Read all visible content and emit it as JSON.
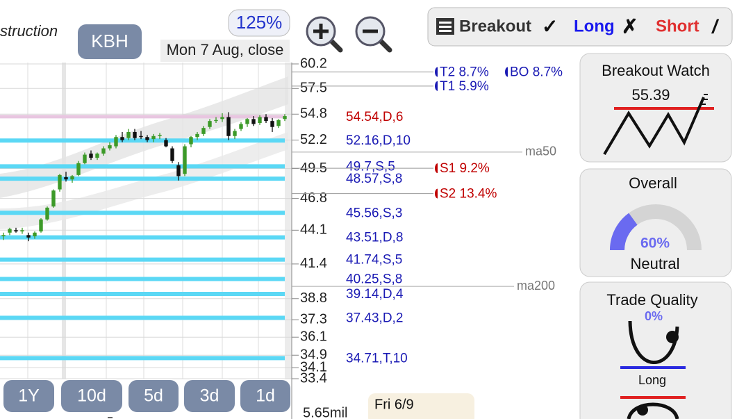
{
  "header": {
    "sector": "struction",
    "symbol": "KBH",
    "zoom": "125%",
    "date": "Mon 7 Aug, close"
  },
  "signals": {
    "breakout": "Breakout",
    "breakout_mark": "✓",
    "long": "Long",
    "long_mark": "✗",
    "short": "Short",
    "short_mark": "/"
  },
  "chart_data": {
    "type": "candlestick",
    "log_scale": true,
    "grid": true,
    "ylim": [
      33.4,
      60.2
    ],
    "yticks": [
      60.2,
      57.5,
      54.8,
      52.2,
      49.5,
      46.8,
      44.1,
      41.4,
      38.8,
      37.3,
      36.1,
      34.9,
      34.1,
      33.4
    ],
    "up_color": "#3c9a28",
    "down_color": "#111111",
    "level_color": "#5bd8f5",
    "candles": [
      [
        43.6,
        43.9,
        43.3,
        43.7
      ],
      [
        43.9,
        44.3,
        43.7,
        44.2
      ],
      [
        44.1,
        44.3,
        43.9,
        44.0
      ],
      [
        44.0,
        44.3,
        43.8,
        44.1
      ],
      [
        43.7,
        43.9,
        43.2,
        43.5
      ],
      [
        43.6,
        44.0,
        43.4,
        43.9
      ],
      [
        44.0,
        45.1,
        43.9,
        45.0
      ],
      [
        45.0,
        46.1,
        44.9,
        46.0
      ],
      [
        46.1,
        47.6,
        46.0,
        47.5
      ],
      [
        47.6,
        49.0,
        47.4,
        48.9
      ],
      [
        48.7,
        49.2,
        48.3,
        48.5
      ],
      [
        48.5,
        48.9,
        48.2,
        48.8
      ],
      [
        48.9,
        50.2,
        48.8,
        50.0
      ],
      [
        50.0,
        51.0,
        49.9,
        50.8
      ],
      [
        50.9,
        51.2,
        50.3,
        50.5
      ],
      [
        50.5,
        51.0,
        50.3,
        50.9
      ],
      [
        50.9,
        51.6,
        50.7,
        51.4
      ],
      [
        51.4,
        52.0,
        51.2,
        51.7
      ],
      [
        51.6,
        52.7,
        51.4,
        52.5
      ],
      [
        52.5,
        53.0,
        52.0,
        52.2
      ],
      [
        52.4,
        53.3,
        52.2,
        53.0
      ],
      [
        53.0,
        53.3,
        52.2,
        52.4
      ],
      [
        52.6,
        53.1,
        52.3,
        52.5
      ],
      [
        52.5,
        52.7,
        52.0,
        52.2
      ],
      [
        52.3,
        52.8,
        52.0,
        52.6
      ],
      [
        52.6,
        52.9,
        52.3,
        52.7
      ],
      [
        52.2,
        52.4,
        51.5,
        51.6
      ],
      [
        51.4,
        51.6,
        50.0,
        50.2
      ],
      [
        49.8,
        50.1,
        48.4,
        48.8
      ],
      [
        49.0,
        51.8,
        48.8,
        51.6
      ],
      [
        51.8,
        52.6,
        51.5,
        52.5
      ],
      [
        52.5,
        53.0,
        52.2,
        52.8
      ],
      [
        52.8,
        53.6,
        52.6,
        53.4
      ],
      [
        53.5,
        54.3,
        53.3,
        54.1
      ],
      [
        54.1,
        54.5,
        53.9,
        54.2
      ],
      [
        54.3,
        54.9,
        54.0,
        54.5
      ],
      [
        54.5,
        55.0,
        52.2,
        52.6
      ],
      [
        52.6,
        53.3,
        52.3,
        53.1
      ],
      [
        53.3,
        54.0,
        53.1,
        53.8
      ],
      [
        53.8,
        54.4,
        53.5,
        54.3
      ],
      [
        54.3,
        54.6,
        53.6,
        53.8
      ],
      [
        53.9,
        54.7,
        53.7,
        54.5
      ],
      [
        54.5,
        54.8,
        53.9,
        54.1
      ],
      [
        54.1,
        54.4,
        53.0,
        53.5
      ],
      [
        53.6,
        54.3,
        53.4,
        54.2
      ],
      [
        54.3,
        54.8,
        54.1,
        54.6
      ]
    ],
    "resistance": {
      "value": 54.54,
      "label": "54.54,D,6",
      "color": "#c00000"
    },
    "levels": [
      {
        "value": 52.16,
        "label": "52.16,D,10"
      },
      {
        "value": 49.7,
        "label": "49.7,S,5"
      },
      {
        "value": 48.57,
        "label": "48.57,S,8"
      },
      {
        "value": 45.56,
        "label": "45.56,S,3"
      },
      {
        "value": 43.51,
        "label": "43.51,D,8"
      },
      {
        "value": 41.74,
        "label": "41.74,S,5"
      },
      {
        "value": 40.25,
        "label": "40.25,S,8"
      },
      {
        "value": 39.14,
        "label": "39.14,D,4"
      },
      {
        "value": 37.43,
        "label": "37.43,D,2"
      },
      {
        "value": 34.71,
        "label": "34.71,T,10"
      }
    ],
    "targets": [
      {
        "value": 59.3,
        "label": "T2 8.7%",
        "color": "#1a1ab4"
      },
      {
        "value": 57.76,
        "label": "T1 5.9%",
        "color": "#1a1ab4"
      },
      {
        "value": 49.52,
        "label": "S1 9.2%",
        "color": "#c00000"
      },
      {
        "value": 47.23,
        "label": "S2 13.4%",
        "color": "#c00000"
      }
    ],
    "breakout_target": {
      "value": 59.3,
      "label": "BO 8.7%"
    },
    "moving_averages": [
      {
        "name": "ma50",
        "value": 51.04
      },
      {
        "name": "ma200",
        "value": 39.7
      }
    ],
    "volume_label": "5.65mil"
  },
  "ranges": [
    "1Y",
    "10d",
    "5d",
    "3d",
    "1d"
  ],
  "footer_date": "Fri 6/9",
  "panels": {
    "breakout_watch": {
      "title": "Breakout Watch",
      "price": "55.39"
    },
    "overall": {
      "title": "Overall",
      "value": 60,
      "label": "60%",
      "status": "Neutral"
    },
    "trade_quality": {
      "title": "Trade Quality",
      "value": 0,
      "label": "0%",
      "side": "Long"
    }
  }
}
